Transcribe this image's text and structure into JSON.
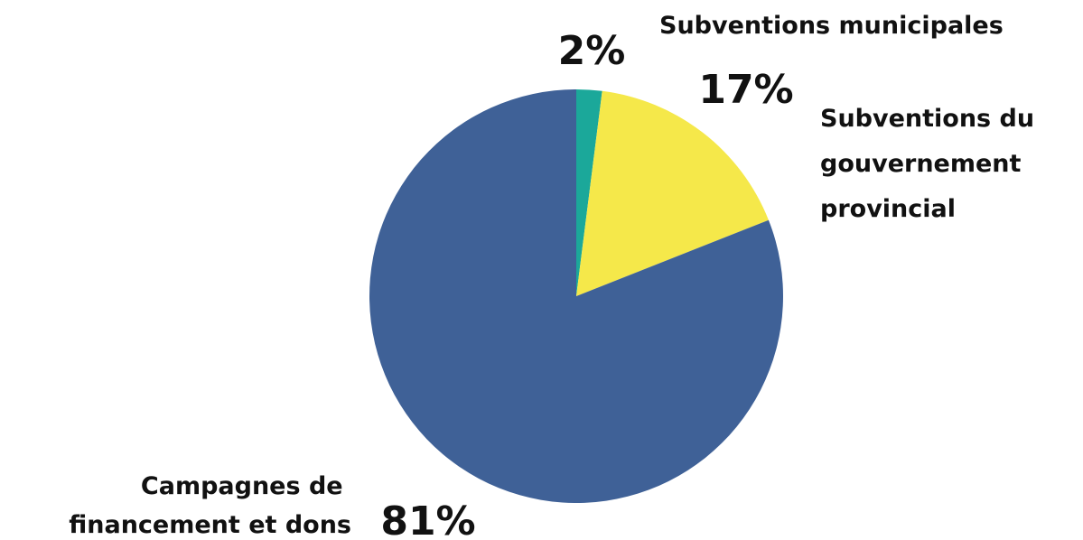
{
  "chart_data": {
    "type": "pie",
    "title": "",
    "start_angle_deg": 0,
    "direction": "clockwise",
    "slices": [
      {
        "name": "Subventions municipales",
        "label_lines": [
          "Subventions municipales"
        ],
        "value": 2,
        "value_label": "2%",
        "color": "#1ba89a"
      },
      {
        "name": "Subventions du gouvernement provincial",
        "label_lines": [
          "Subventions du",
          "gouvernement",
          "provincial"
        ],
        "value": 17,
        "value_label": "17%",
        "color": "#f5e84a"
      },
      {
        "name": "Campagnes de financement et dons",
        "label_lines": [
          "Campagnes de",
          "financement et dons"
        ],
        "value": 81,
        "value_label": "81%",
        "color": "#3f6197"
      }
    ]
  }
}
